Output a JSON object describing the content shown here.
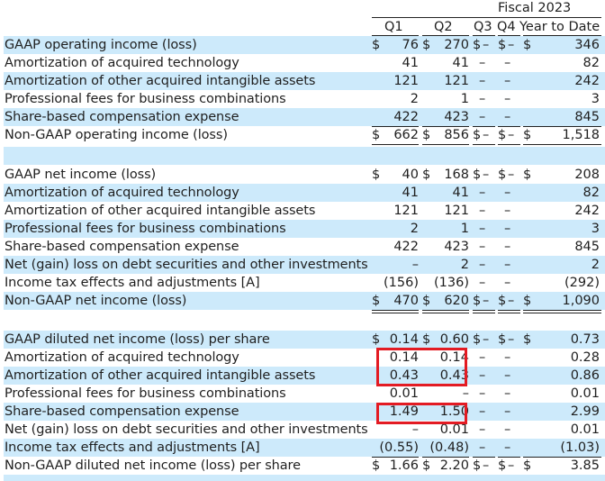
{
  "header": {
    "period_title": "Fiscal 2023",
    "columns": [
      "Q1",
      "Q2",
      "Q3",
      "Q4",
      "Year to Date"
    ]
  },
  "sections": [
    {
      "rows": [
        {
          "label": "GAAP operating income (loss)",
          "q1": "76",
          "q2": "270",
          "q3": "–",
          "q4": "–",
          "ytd": "346",
          "currency": true
        },
        {
          "label": "Amortization of acquired technology",
          "q1": "41",
          "q2": "41",
          "q3": "–",
          "q4": "–",
          "ytd": "82"
        },
        {
          "label": "Amortization of other acquired intangible assets",
          "q1": "121",
          "q2": "121",
          "q3": "–",
          "q4": "–",
          "ytd": "242"
        },
        {
          "label": "Professional fees for business combinations",
          "q1": "2",
          "q2": "1",
          "q3": "–",
          "q4": "–",
          "ytd": "3"
        },
        {
          "label": "Share-based compensation expense",
          "q1": "422",
          "q2": "423",
          "q3": "–",
          "q4": "–",
          "ytd": "845"
        },
        {
          "label": "Non-GAAP operating income (loss)",
          "q1": "662",
          "q2": "856",
          "q3": "–",
          "q4": "–",
          "ytd": "1,518",
          "currency": true,
          "total": true
        }
      ]
    },
    {
      "rows": [
        {
          "label": "GAAP net income (loss)",
          "q1": "40",
          "q2": "168",
          "q3": "–",
          "q4": "–",
          "ytd": "208",
          "currency": true
        },
        {
          "label": "Amortization of acquired technology",
          "q1": "41",
          "q2": "41",
          "q3": "–",
          "q4": "–",
          "ytd": "82"
        },
        {
          "label": "Amortization of other acquired intangible assets",
          "q1": "121",
          "q2": "121",
          "q3": "–",
          "q4": "–",
          "ytd": "242"
        },
        {
          "label": "Professional fees for business combinations",
          "q1": "2",
          "q2": "1",
          "q3": "–",
          "q4": "–",
          "ytd": "3"
        },
        {
          "label": "Share-based compensation expense",
          "q1": "422",
          "q2": "423",
          "q3": "–",
          "q4": "–",
          "ytd": "845"
        },
        {
          "label": "Net (gain) loss on debt securities and other investments",
          "q1": "–",
          "q2": "2",
          "q3": "–",
          "q4": "–",
          "ytd": "2"
        },
        {
          "label": "Income tax effects and adjustments [A]",
          "q1": "(156)",
          "q2": "(136)",
          "q3": "–",
          "q4": "–",
          "ytd": "(292)"
        },
        {
          "label": "Non-GAAP net income (loss)",
          "q1": "470",
          "q2": "620",
          "q3": "–",
          "q4": "–",
          "ytd": "1,090",
          "currency": true,
          "total": true
        }
      ]
    },
    {
      "rows": [
        {
          "label": "GAAP diluted net income (loss) per share",
          "q1": "0.14",
          "q2": "0.60",
          "q3": "–",
          "q4": "–",
          "ytd": "0.73",
          "currency": true
        },
        {
          "label": "Amortization of acquired technology",
          "q1": "0.14",
          "q2": "0.14",
          "q3": "–",
          "q4": "–",
          "ytd": "0.28"
        },
        {
          "label": "Amortization of other acquired intangible assets",
          "q1": "0.43",
          "q2": "0.43",
          "q3": "–",
          "q4": "–",
          "ytd": "0.86"
        },
        {
          "label": "Professional fees for business combinations",
          "q1": "0.01",
          "q2": "–",
          "q3": "–",
          "q4": "–",
          "ytd": "0.01"
        },
        {
          "label": "Share-based compensation expense",
          "q1": "1.49",
          "q2": "1.50",
          "q3": "–",
          "q4": "–",
          "ytd": "2.99"
        },
        {
          "label": "Net (gain) loss on debt securities and other investments",
          "q1": "–",
          "q2": "0.01",
          "q3": "–",
          "q4": "–",
          "ytd": "0.01"
        },
        {
          "label": "Income tax effects and adjustments [A]",
          "q1": "(0.55)",
          "q2": "(0.48)",
          "q3": "–",
          "q4": "–",
          "ytd": "(1.03)"
        },
        {
          "label": "Non-GAAP diluted net income (loss) per share",
          "q1": "1.66",
          "q2": "2.20",
          "q3": "–",
          "q4": "–",
          "ytd": "3.85",
          "currency": true,
          "total": true
        }
      ]
    }
  ],
  "currency_symbol": "$",
  "highlights": [
    {
      "description": "Red box around Q1/Q2 amortization per-share values",
      "color": "#e31b23"
    },
    {
      "description": "Red box around Q1/Q2 share-based compensation per-share values",
      "color": "#e31b23"
    }
  ],
  "colors": {
    "band": "#cdeafb",
    "highlight": "#e31b23",
    "text": "#1f1f1f"
  }
}
